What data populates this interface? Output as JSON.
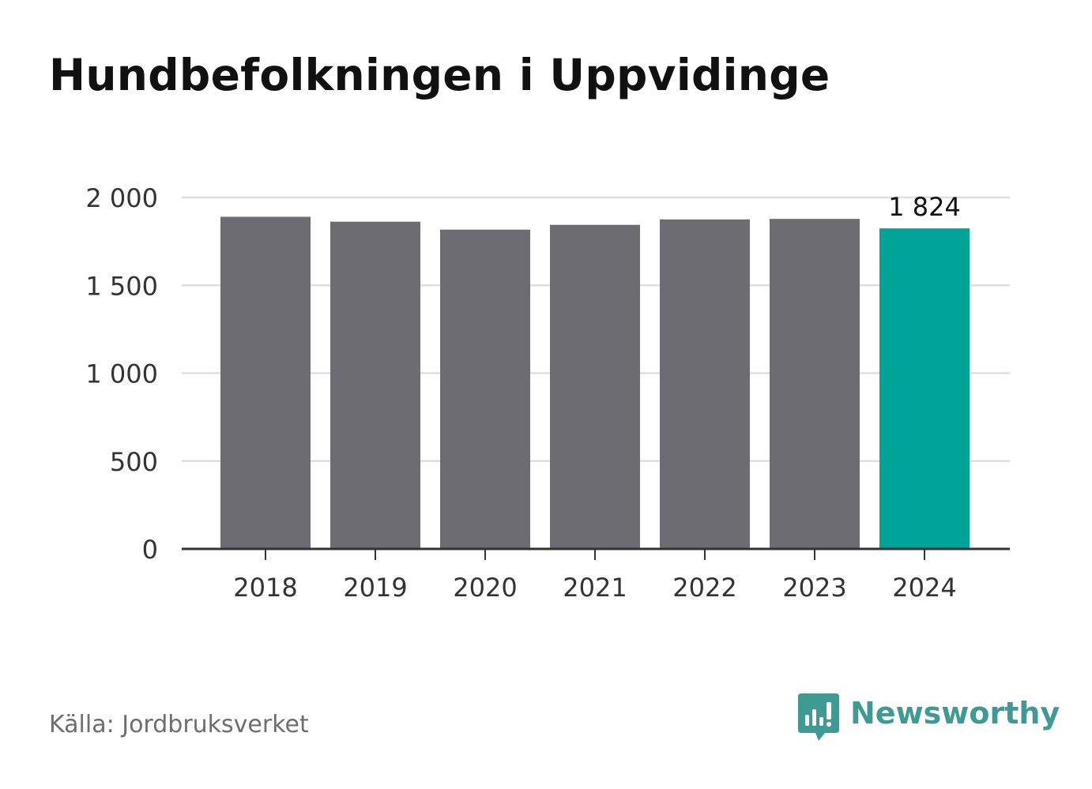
{
  "title": "Hundbefolkningen i Uppvidinge",
  "source": "Källa: Jordbruksverket",
  "brand": {
    "name": "Newsworthy",
    "icon": "newsworthy-logo-icon",
    "color": "#3f9a94"
  },
  "colors": {
    "bar": "#6d6c72",
    "highlight": "#00a398",
    "grid": "#dedede",
    "axis": "#333333",
    "text": "#333333"
  },
  "chart_data": {
    "type": "bar",
    "categories": [
      "2018",
      "2019",
      "2020",
      "2021",
      "2022",
      "2023",
      "2024"
    ],
    "values": [
      1890,
      1862,
      1817,
      1844,
      1875,
      1878,
      1824
    ],
    "highlight_index": 6,
    "value_labels": [
      {
        "category": "2024",
        "text": "1 824"
      }
    ],
    "y_ticks": [
      0,
      500,
      1000,
      1500,
      2000
    ],
    "y_tick_labels": [
      "0",
      "500",
      "1 000",
      "1 500",
      "2 000"
    ],
    "ylim": [
      0,
      2000
    ],
    "grid": true,
    "legend": "none"
  }
}
